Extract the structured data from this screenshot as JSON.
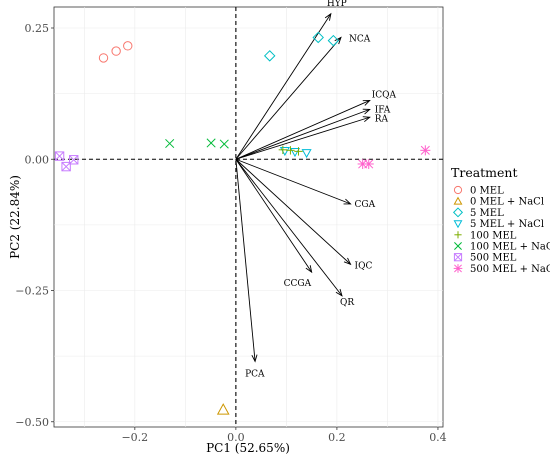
{
  "chart_data": {
    "type": "scatter",
    "title": "",
    "xlabel": "PC1 (52.65%)",
    "ylabel": "PC2 (22.84%)",
    "xlim": [
      -0.36,
      0.41
    ],
    "ylim": [
      -0.51,
      0.29
    ],
    "xticks": [
      -0.2,
      0.0,
      0.2,
      0.4
    ],
    "xtick_labels": [
      "−0.2",
      "0.0",
      "0.2",
      "0.4"
    ],
    "yticks": [
      -0.5,
      -0.25,
      0.0,
      0.25
    ],
    "ytick_labels": [
      "−0.50",
      "−0.25",
      "0.00",
      "0.25"
    ],
    "grid": true,
    "reference_lines": {
      "x": 0,
      "y": 0,
      "style": "dashed"
    },
    "legend": {
      "title": "Treatment",
      "position": "right"
    },
    "series": [
      {
        "name": "0 MEL",
        "marker": "circle",
        "color": "#F8766D",
        "points": [
          [
            -0.262,
            0.193
          ],
          [
            -0.237,
            0.206
          ],
          [
            -0.214,
            0.216
          ]
        ]
      },
      {
        "name": "0 MEL + NaCl",
        "marker": "triangle-up",
        "color": "#CD9600",
        "points": [
          [
            -0.025,
            -0.477
          ]
        ]
      },
      {
        "name": "5 MEL",
        "marker": "diamond",
        "color": "#00BFC4",
        "points": [
          [
            0.067,
            0.197
          ],
          [
            0.163,
            0.232
          ],
          [
            0.193,
            0.226
          ]
        ]
      },
      {
        "name": "5 MEL + NaCl",
        "marker": "triangle-down",
        "color": "#00BCD8",
        "points": [
          [
            0.097,
            0.016
          ],
          [
            0.117,
            0.014
          ],
          [
            0.14,
            0.012
          ]
        ]
      },
      {
        "name": "100 MEL",
        "marker": "plus",
        "color": "#7CAE00",
        "points": [
          [
            0.093,
            0.018
          ],
          [
            0.108,
            0.017
          ],
          [
            0.124,
            0.015
          ]
        ]
      },
      {
        "name": "100 MEL + NaCl",
        "marker": "cross",
        "color": "#00BA38",
        "points": [
          [
            -0.131,
            0.03
          ],
          [
            -0.049,
            0.031
          ],
          [
            -0.023,
            0.029
          ]
        ]
      },
      {
        "name": "500 MEL",
        "marker": "square-cross",
        "color": "#C77CFF",
        "points": [
          [
            -0.349,
            0.006
          ],
          [
            -0.336,
            -0.014
          ],
          [
            -0.321,
            -0.001
          ]
        ]
      },
      {
        "name": "500 MEL + NaCl",
        "marker": "asterisk",
        "color": "#FF61CC",
        "points": [
          [
            0.251,
            -0.009
          ],
          [
            0.263,
            -0.009
          ],
          [
            0.375,
            0.017
          ]
        ]
      }
    ],
    "vectors": [
      {
        "name": "HYP",
        "x": 0.188,
        "y": 0.277
      },
      {
        "name": "NCA",
        "x": 0.208,
        "y": 0.232
      },
      {
        "name": "ICQA",
        "x": 0.265,
        "y": 0.112
      },
      {
        "name": "IFA",
        "x": 0.265,
        "y": 0.095
      },
      {
        "name": "RA",
        "x": 0.265,
        "y": 0.08
      },
      {
        "name": "CGA",
        "x": 0.227,
        "y": -0.085
      },
      {
        "name": "IQC",
        "x": 0.227,
        "y": -0.2
      },
      {
        "name": "CCGA",
        "x": 0.15,
        "y": -0.215
      },
      {
        "name": "QR",
        "x": 0.21,
        "y": -0.26
      },
      {
        "name": "PCA",
        "x": 0.038,
        "y": -0.385
      }
    ]
  }
}
